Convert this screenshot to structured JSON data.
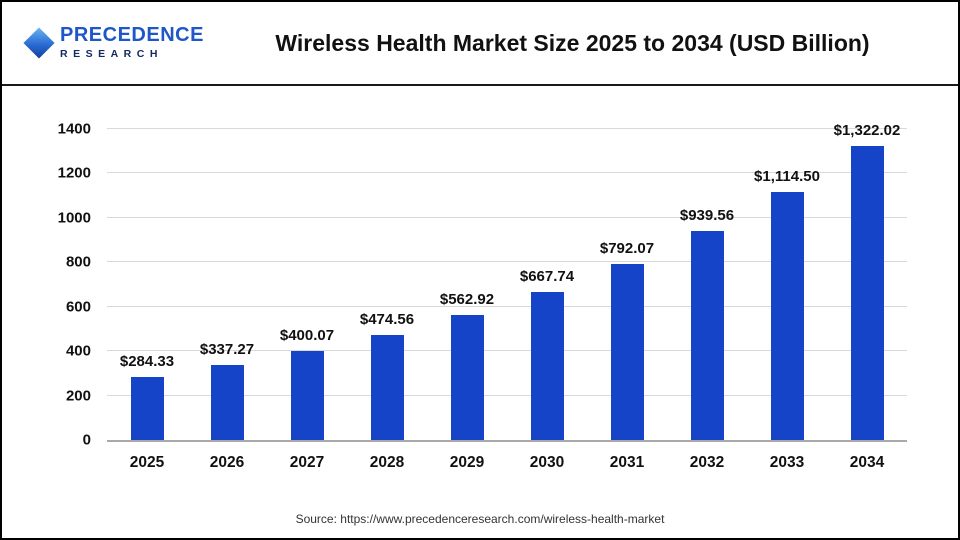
{
  "header": {
    "logo": {
      "line1": "PRECEDENCE",
      "line2": "RESEARCH",
      "mark": "diamond-gradient-icon"
    },
    "title": "Wireless Health Market Size 2025 to 2034 (USD Billion)"
  },
  "chart_data": {
    "type": "bar",
    "title": "Wireless Health Market Size 2025 to 2034 (USD Billion)",
    "categories": [
      "2025",
      "2026",
      "2027",
      "2028",
      "2029",
      "2030",
      "2031",
      "2032",
      "2033",
      "2034"
    ],
    "values": [
      284.33,
      337.27,
      400.07,
      474.56,
      562.92,
      667.74,
      792.07,
      939.56,
      1114.5,
      1322.02
    ],
    "value_labels": [
      "$284.33",
      "$337.27",
      "$400.07",
      "$474.56",
      "$562.92",
      "$667.74",
      "$792.07",
      "$939.56",
      "$1,114.50",
      "$1,322.02"
    ],
    "xlabel": "",
    "ylabel": "",
    "ylim": [
      0,
      1400
    ],
    "yticks": [
      0,
      200,
      400,
      600,
      800,
      1000,
      1200,
      1400
    ],
    "grid": true,
    "legend": "none",
    "bar_color": "#1544c8"
  },
  "footer": {
    "source": "Source: https://www.precedenceresearch.com/wireless-health-market"
  },
  "colors": {
    "bar": "#1544c8",
    "logo_blue": "#1f57c8",
    "logo_navy": "#152a63",
    "gridline": "#d9d9d9",
    "text": "#111111"
  }
}
